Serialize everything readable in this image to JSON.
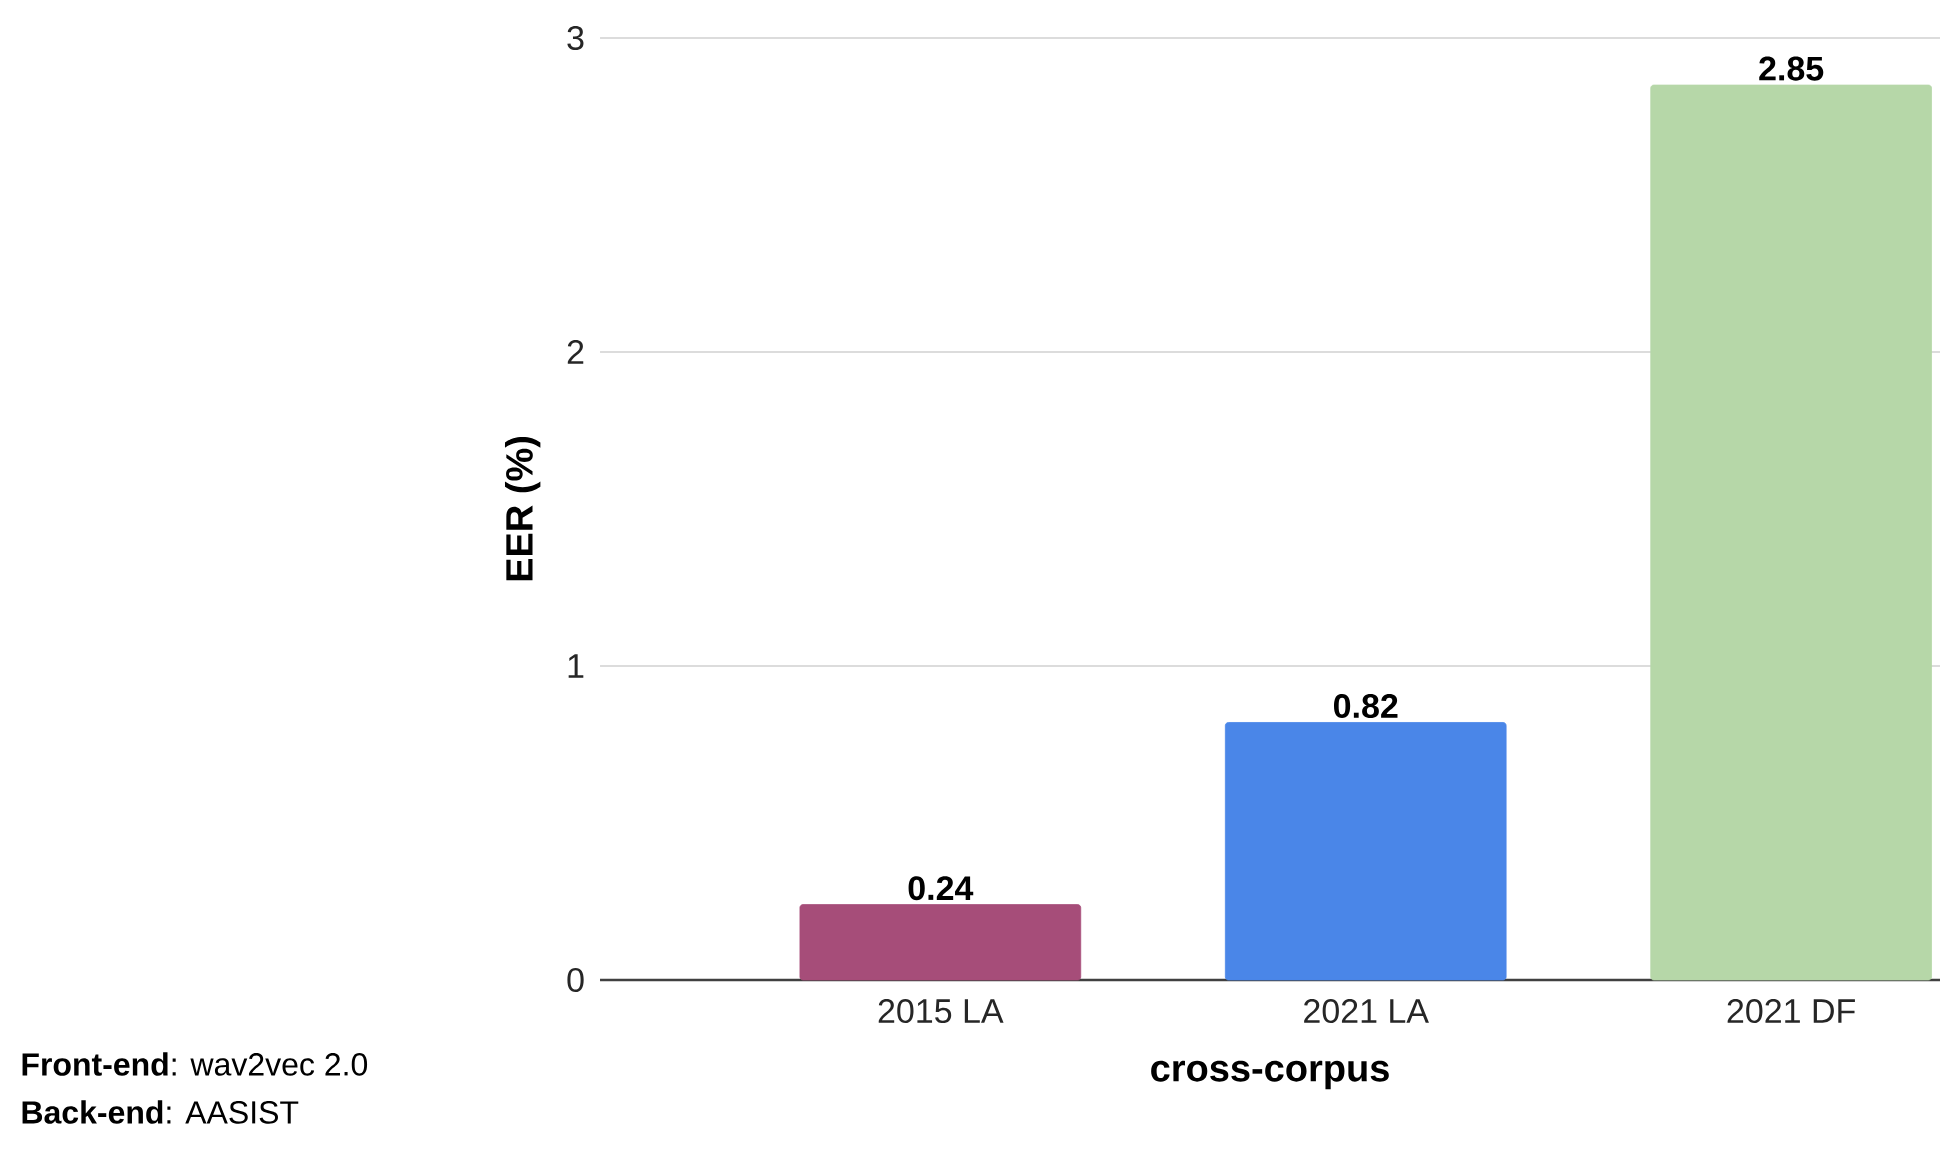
{
  "chart_data": {
    "type": "bar",
    "xlabel": "cross-corpus",
    "ylabel": "EER (%)",
    "categories": [
      "2015 LA",
      "2021 LA",
      "2021 DF"
    ],
    "values": [
      0.24,
      0.82,
      2.85
    ],
    "colors": [
      "#a64d79",
      "#4a86e8",
      "#b6d7a8"
    ],
    "value_labels": [
      "0.24",
      "0.82",
      "2.85"
    ],
    "ylim": [
      0,
      3
    ],
    "yticks": [
      0,
      1,
      2,
      3
    ],
    "grid": "y",
    "annotations": [
      "**Front-end**: wav2vec 2.0",
      "**Back-end**: AASIST"
    ]
  }
}
